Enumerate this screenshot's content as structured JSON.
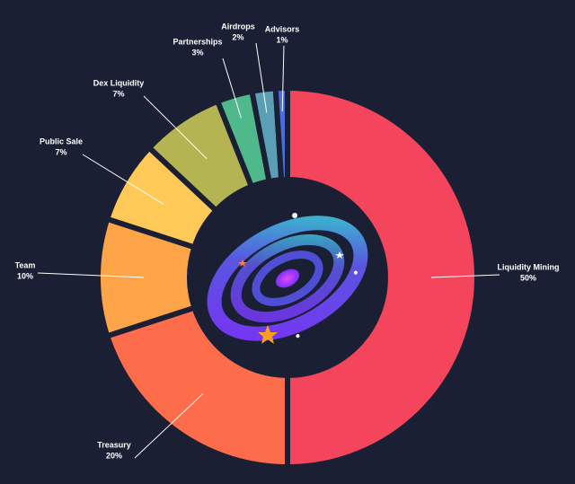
{
  "chart_data": {
    "type": "donut",
    "categories": [
      "Liquidity Mining",
      "Treasury",
      "Team",
      "Public Sale",
      "Dex Liquidity",
      "Partnerships",
      "Airdrops",
      "Advisors"
    ],
    "values": [
      50,
      20,
      10,
      7,
      7,
      3,
      2,
      1
    ],
    "value_labels": [
      "50%",
      "20%",
      "10%",
      "7%",
      "7%",
      "3%",
      "2%",
      "1%"
    ],
    "colors": [
      "#f5455c",
      "#fe6d4b",
      "#fea448",
      "#ffc957",
      "#b4b452",
      "#4fb98c",
      "#5b9fb6",
      "#4d6ddb"
    ]
  }
}
